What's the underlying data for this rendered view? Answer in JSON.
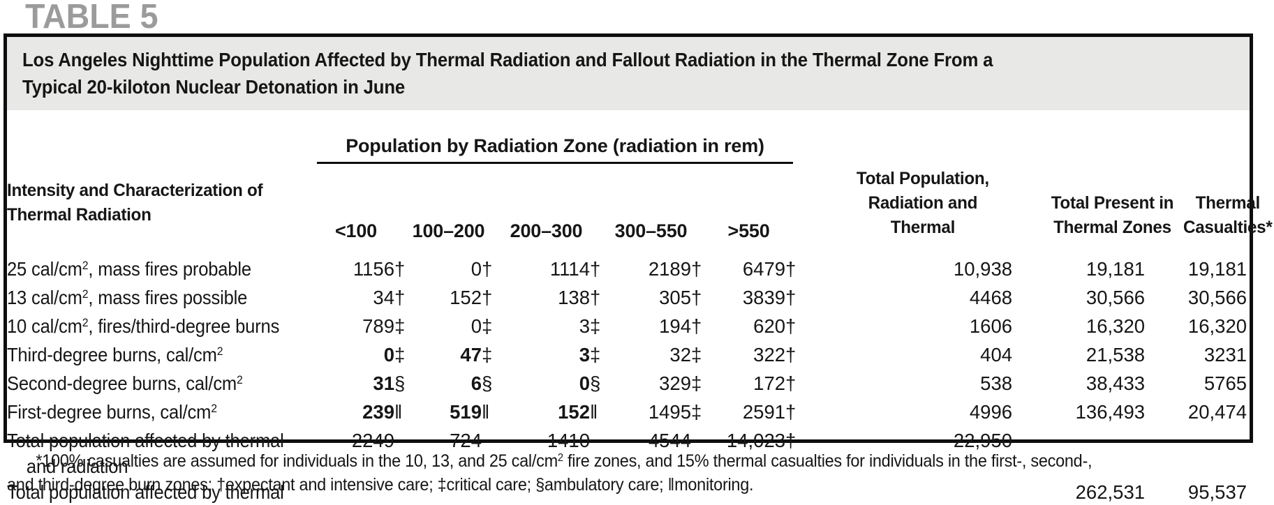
{
  "page": {
    "table_tag": "TABLE 5"
  },
  "title": "Los Angeles Nighttime Population Affected by Thermal Radiation and Fallout Radiation in the Thermal Zone From a\nTypical 20-kiloton Nuclear Detonation in June",
  "colors": {
    "tag_gray": "#9b9b9b",
    "title_bar_bg": "#e8e8e6",
    "border_black": "#0e0e0e",
    "text": "#161616"
  },
  "table": {
    "header": {
      "stub": "Intensity and Characterization of\nThermal Radiation",
      "zone_group": "Population by Radiation Zone (radiation in rem)",
      "zones": [
        "<100",
        "100–200",
        "200–300",
        "300–550",
        ">550"
      ],
      "total_pop_rad_thermal": "Total Population,\nRadiation and\nThermal",
      "total_present": "Total Present in\nThermal Zones",
      "thermal_casualties": "Thermal\nCasualties*"
    },
    "rows": [
      {
        "label": {
          "pre": "25 cal/cm",
          "sup": "2",
          "post": ", mass fires probable"
        },
        "cells": [
          {
            "v": "1156",
            "s": "†"
          },
          {
            "v": "0",
            "s": "†"
          },
          {
            "v": "1114",
            "s": "†"
          },
          {
            "v": "2189",
            "s": "†"
          },
          {
            "v": "6479",
            "s": "†"
          },
          {
            "v": "10,938"
          },
          {
            "v": "19,181"
          },
          {
            "v": "19,181"
          }
        ]
      },
      {
        "label": {
          "pre": "13 cal/cm",
          "sup": "2",
          "post": ", mass fires possible"
        },
        "cells": [
          {
            "v": "34",
            "s": "†"
          },
          {
            "v": "152",
            "s": "†"
          },
          {
            "v": "138",
            "s": "†"
          },
          {
            "v": "305",
            "s": "†"
          },
          {
            "v": "3839",
            "s": "†"
          },
          {
            "v": "4468"
          },
          {
            "v": "30,566"
          },
          {
            "v": "30,566"
          }
        ]
      },
      {
        "label": {
          "pre": "10 cal/cm",
          "sup": "2",
          "post": ", fires/third-degree burns"
        },
        "cells": [
          {
            "v": "789",
            "s": "‡"
          },
          {
            "v": "0",
            "s": "‡"
          },
          {
            "v": "3",
            "s": "‡"
          },
          {
            "v": "194",
            "s": "†"
          },
          {
            "v": "620",
            "s": "†"
          },
          {
            "v": "1606"
          },
          {
            "v": "16,320"
          },
          {
            "v": "16,320"
          }
        ]
      },
      {
        "label": {
          "pre": "Third-degree burns, cal/cm",
          "sup": "2",
          "post": ""
        },
        "cells": [
          {
            "v": "0",
            "s": "‡",
            "b": true
          },
          {
            "v": "47",
            "s": "‡",
            "b": true
          },
          {
            "v": "3",
            "s": "‡",
            "b": true
          },
          {
            "v": "32",
            "s": "‡"
          },
          {
            "v": "322",
            "s": "†"
          },
          {
            "v": "404"
          },
          {
            "v": "21,538"
          },
          {
            "v": "3231"
          }
        ]
      },
      {
        "label": {
          "pre": "Second-degree burns, cal/cm",
          "sup": "2",
          "post": ""
        },
        "cells": [
          {
            "v": "31",
            "s": "§",
            "b": true
          },
          {
            "v": "6",
            "s": "§",
            "b": true
          },
          {
            "v": "0",
            "s": "§",
            "b": true
          },
          {
            "v": "329",
            "s": "‡"
          },
          {
            "v": "172",
            "s": "†"
          },
          {
            "v": "538"
          },
          {
            "v": "38,433"
          },
          {
            "v": "5765"
          }
        ]
      },
      {
        "label": {
          "pre": "First-degree burns, cal/cm",
          "sup": "2",
          "post": ""
        },
        "cells": [
          {
            "v": "239",
            "s": "‖",
            "b": true
          },
          {
            "v": "519",
            "s": "‖",
            "b": true
          },
          {
            "v": "152",
            "s": "‖",
            "b": true
          },
          {
            "v": "1495",
            "s": "‡"
          },
          {
            "v": "2591",
            "s": "†"
          },
          {
            "v": "4996"
          },
          {
            "v": "136,493"
          },
          {
            "v": "20,474"
          }
        ]
      },
      {
        "label": {
          "pre": "Total population affected by thermal",
          "line2": "and radiation"
        },
        "cells": [
          {
            "v": "2249"
          },
          {
            "v": "724"
          },
          {
            "v": "1410"
          },
          {
            "v": "4544"
          },
          {
            "v": "14,023",
            "s": "†"
          },
          {
            "v": "22,950"
          },
          null,
          null
        ]
      },
      {
        "label": {
          "pre": "Total population affected by thermal"
        },
        "cells": [
          null,
          null,
          null,
          null,
          null,
          null,
          {
            "v": "262,531"
          },
          {
            "v": "95,537"
          }
        ]
      }
    ]
  },
  "footnote": {
    "line1_pre": "*100% casualties are assumed for individuals in the 10, 13, and 25 cal/cm",
    "sup": "2",
    "line1_post": " fire zones, and 15% thermal casualties for individuals in the first-, second-,",
    "line2": "and third-degree burn zones; †expectant and intensive care; ‡critical care; §ambulatory care; ‖monitoring."
  }
}
